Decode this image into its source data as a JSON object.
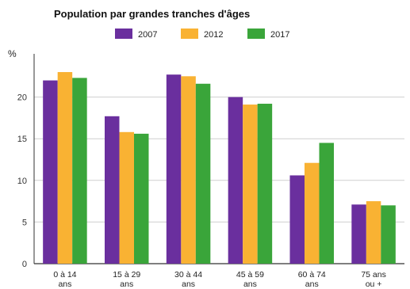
{
  "chart_data": {
    "type": "bar",
    "title": "Population par grandes tranches d'âges",
    "ylabel": "%",
    "xlabel": "",
    "ylim": [
      0,
      25
    ],
    "yticks": [
      0,
      5,
      10,
      15,
      20
    ],
    "grid": true,
    "legend_position": "top",
    "categories": [
      [
        "0 à 14",
        "ans"
      ],
      [
        "15 à 29",
        "ans"
      ],
      [
        "30 à 44",
        "ans"
      ],
      [
        "45 à 59",
        "ans"
      ],
      [
        "60 à 74",
        "ans"
      ],
      [
        "75 ans",
        "ou +"
      ]
    ],
    "series": [
      {
        "name": "2007",
        "color": "#6a2f9e",
        "values": [
          22.0,
          17.7,
          22.7,
          20.0,
          10.6,
          7.1
        ]
      },
      {
        "name": "2012",
        "color": "#f9b233",
        "values": [
          23.0,
          15.8,
          22.5,
          19.1,
          12.1,
          7.5
        ]
      },
      {
        "name": "2017",
        "color": "#3aa53a",
        "values": [
          22.3,
          15.6,
          21.6,
          19.2,
          14.5,
          7.0
        ]
      }
    ]
  }
}
